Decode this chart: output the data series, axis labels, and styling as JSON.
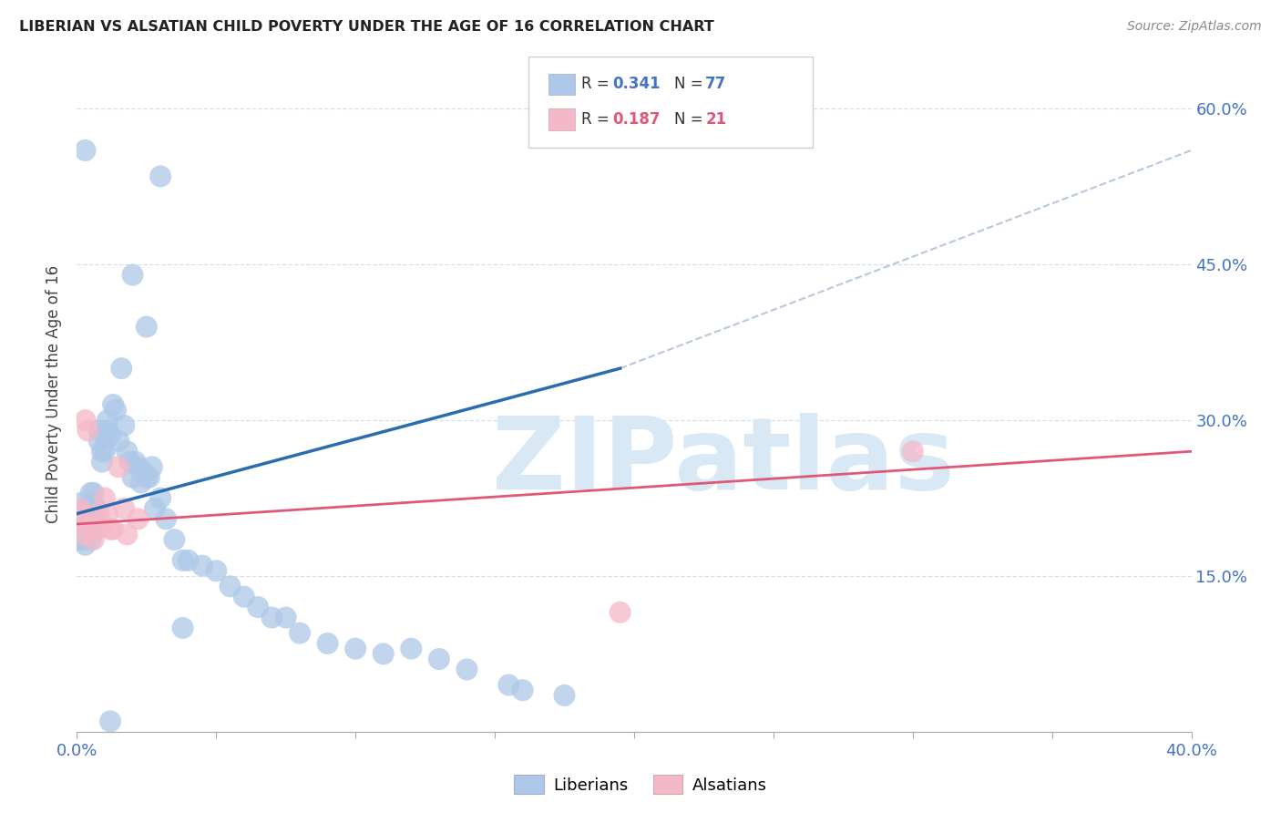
{
  "title": "LIBERIAN VS ALSATIAN CHILD POVERTY UNDER THE AGE OF 16 CORRELATION CHART",
  "source": "Source: ZipAtlas.com",
  "ylabel_label": "Child Poverty Under the Age of 16",
  "x_min": 0.0,
  "x_max": 0.4,
  "y_min": 0.0,
  "y_max": 0.65,
  "x_ticks": [
    0.0,
    0.05,
    0.1,
    0.15,
    0.2,
    0.25,
    0.3,
    0.35,
    0.4
  ],
  "y_ticks": [
    0.0,
    0.15,
    0.3,
    0.45,
    0.6
  ],
  "y_tick_labels_right": [
    "",
    "15.0%",
    "30.0%",
    "45.0%",
    "60.0%"
  ],
  "liberian_R": 0.341,
  "liberian_N": 77,
  "alsatian_R": 0.187,
  "alsatian_N": 21,
  "liberian_color": "#adc8e8",
  "liberian_line_color": "#2b6cb0",
  "alsatian_color": "#f5b8c8",
  "alsatian_line_color": "#e05878",
  "diagonal_color": "#b8c8dc",
  "watermark_text": "ZIPatlas",
  "watermark_color": "#d8e8f5",
  "background_color": "#ffffff",
  "liberian_x": [
    0.001,
    0.001,
    0.001,
    0.001,
    0.001,
    0.002,
    0.002,
    0.002,
    0.002,
    0.003,
    0.003,
    0.003,
    0.004,
    0.004,
    0.004,
    0.005,
    0.005,
    0.005,
    0.006,
    0.006,
    0.006,
    0.007,
    0.007,
    0.008,
    0.008,
    0.009,
    0.009,
    0.01,
    0.01,
    0.011,
    0.011,
    0.012,
    0.013,
    0.014,
    0.015,
    0.016,
    0.017,
    0.018,
    0.019,
    0.02,
    0.021,
    0.022,
    0.023,
    0.024,
    0.025,
    0.026,
    0.027,
    0.028,
    0.03,
    0.032,
    0.035,
    0.038,
    0.04,
    0.045,
    0.05,
    0.055,
    0.06,
    0.065,
    0.07,
    0.075,
    0.08,
    0.09,
    0.1,
    0.11,
    0.12,
    0.13,
    0.14,
    0.155,
    0.16,
    0.175,
    0.02,
    0.025,
    0.03,
    0.003,
    0.005,
    0.038,
    0.012
  ],
  "liberian_y": [
    0.2,
    0.21,
    0.22,
    0.195,
    0.185,
    0.19,
    0.2,
    0.21,
    0.185,
    0.195,
    0.205,
    0.18,
    0.2,
    0.215,
    0.19,
    0.185,
    0.21,
    0.23,
    0.22,
    0.23,
    0.2,
    0.215,
    0.195,
    0.28,
    0.29,
    0.26,
    0.27,
    0.27,
    0.285,
    0.29,
    0.3,
    0.285,
    0.315,
    0.31,
    0.28,
    0.35,
    0.295,
    0.27,
    0.26,
    0.245,
    0.26,
    0.255,
    0.24,
    0.25,
    0.245,
    0.245,
    0.255,
    0.215,
    0.225,
    0.205,
    0.185,
    0.165,
    0.165,
    0.16,
    0.155,
    0.14,
    0.13,
    0.12,
    0.11,
    0.11,
    0.095,
    0.085,
    0.08,
    0.075,
    0.08,
    0.07,
    0.06,
    0.045,
    0.04,
    0.035,
    0.44,
    0.39,
    0.535,
    0.56,
    0.2,
    0.1,
    0.01
  ],
  "alsatian_x": [
    0.001,
    0.001,
    0.002,
    0.002,
    0.003,
    0.004,
    0.005,
    0.006,
    0.007,
    0.008,
    0.009,
    0.01,
    0.011,
    0.012,
    0.013,
    0.015,
    0.017,
    0.018,
    0.022,
    0.3,
    0.195
  ],
  "alsatian_y": [
    0.2,
    0.215,
    0.19,
    0.21,
    0.3,
    0.29,
    0.195,
    0.185,
    0.195,
    0.21,
    0.2,
    0.225,
    0.21,
    0.195,
    0.195,
    0.255,
    0.215,
    0.19,
    0.205,
    0.27,
    0.115
  ]
}
